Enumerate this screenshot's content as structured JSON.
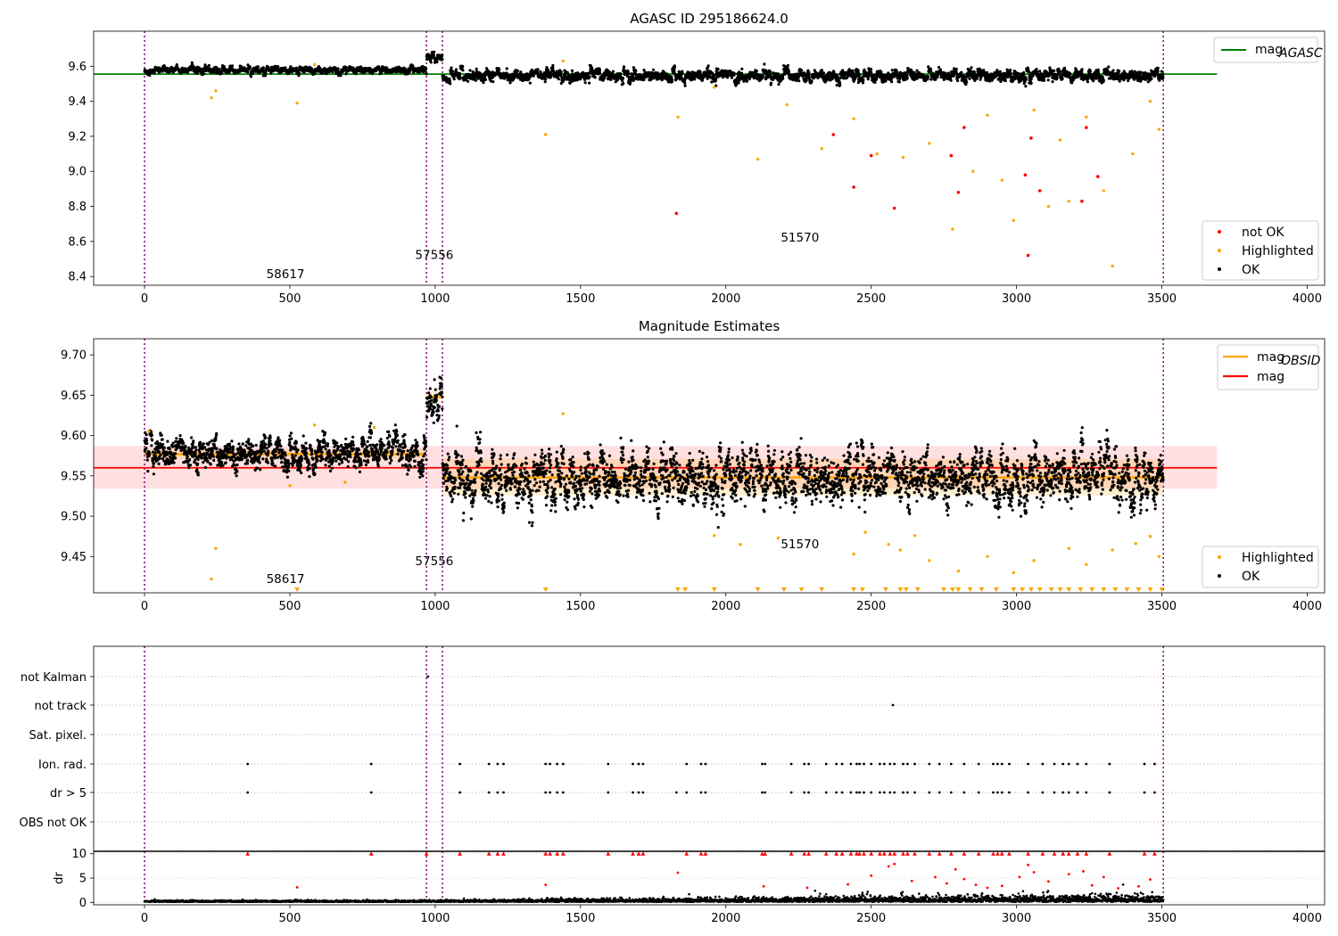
{
  "chart_data": [
    {
      "type": "scatter",
      "title": "AGASC ID 295186624.0",
      "xlim": [
        -175,
        4060
      ],
      "ylim": [
        8.35,
        9.8
      ],
      "xticks": [
        "0",
        "500",
        "1000",
        "1500",
        "2000",
        "2500",
        "3000",
        "3500",
        "4000"
      ],
      "yticks": [
        "8.4",
        "8.6",
        "8.8",
        "9.0",
        "9.2",
        "9.4",
        "9.6"
      ],
      "vlines": [
        0,
        970,
        1025,
        3505
      ],
      "hline": {
        "name": "mag",
        "sub": "AGASC",
        "value": 9.555,
        "color": "#008000",
        "x_extent": [
          -175,
          3690
        ]
      },
      "annotations": [
        {
          "text": "58617",
          "x": 485,
          "y": 8.39
        },
        {
          "text": "57556",
          "x": 997,
          "y": 8.5
        },
        {
          "text": "51570",
          "x": 2255,
          "y": 8.6
        }
      ],
      "legend_lines": [
        {
          "name": "mag",
          "sub": "AGASC",
          "color": "#008000"
        }
      ],
      "legend_points": [
        {
          "name": "not OK",
          "color": "#ff0000"
        },
        {
          "name": "Highlighted",
          "color": "#ffa500"
        },
        {
          "name": "OK",
          "color": "#000000"
        }
      ],
      "segments": [
        {
          "x0": 0,
          "x1": 970,
          "level": 9.578,
          "sd": 0.009
        },
        {
          "x0": 970,
          "x1": 1025,
          "level": 9.648,
          "sd": 0.01
        },
        {
          "x0": 1025,
          "x1": 3505,
          "level": 9.548,
          "sd": 0.015
        }
      ],
      "highlighted": [
        [
          230,
          9.42
        ],
        [
          245,
          9.46
        ],
        [
          525,
          9.39
        ],
        [
          585,
          9.61
        ],
        [
          1380,
          9.21
        ],
        [
          1440,
          9.63
        ],
        [
          1835,
          9.31
        ],
        [
          1960,
          9.48
        ],
        [
          2110,
          9.07
        ],
        [
          2210,
          9.38
        ],
        [
          2330,
          9.13
        ],
        [
          2440,
          9.3
        ],
        [
          2520,
          9.1
        ],
        [
          2610,
          9.08
        ],
        [
          2700,
          9.16
        ],
        [
          2780,
          8.67
        ],
        [
          2850,
          9.0
        ],
        [
          2900,
          9.32
        ],
        [
          2950,
          8.95
        ],
        [
          2990,
          8.72
        ],
        [
          3060,
          9.35
        ],
        [
          3110,
          8.8
        ],
        [
          3150,
          9.18
        ],
        [
          3180,
          8.83
        ],
        [
          3240,
          9.31
        ],
        [
          3300,
          8.89
        ],
        [
          3330,
          8.46
        ],
        [
          3400,
          9.1
        ],
        [
          3460,
          9.4
        ],
        [
          3490,
          9.24
        ]
      ],
      "not_ok": [
        [
          1830,
          8.76
        ],
        [
          2370,
          9.21
        ],
        [
          2440,
          8.91
        ],
        [
          2500,
          9.09
        ],
        [
          2580,
          8.79
        ],
        [
          2775,
          9.09
        ],
        [
          2800,
          8.88
        ],
        [
          2820,
          9.25
        ],
        [
          3030,
          8.98
        ],
        [
          3040,
          8.52
        ],
        [
          3050,
          9.19
        ],
        [
          3080,
          8.89
        ],
        [
          3225,
          8.83
        ],
        [
          3240,
          9.25
        ],
        [
          3280,
          8.97
        ]
      ]
    },
    {
      "type": "scatter",
      "title": "Magnitude Estimates",
      "xlim": [
        -175,
        4060
      ],
      "ylim": [
        9.405,
        9.72
      ],
      "xticks": [
        "0",
        "500",
        "1000",
        "1500",
        "2000",
        "2500",
        "3000",
        "3500",
        "4000"
      ],
      "yticks": [
        "9.45",
        "9.50",
        "9.55",
        "9.60",
        "9.65",
        "9.70"
      ],
      "vlines": [
        0,
        970,
        1025,
        3505
      ],
      "mag_line": {
        "name": "mag",
        "value": 9.56,
        "band": [
          9.534,
          9.587
        ],
        "color": "#ff0000",
        "x_extent": [
          -175,
          3690
        ]
      },
      "obsid_mags": [
        {
          "x0": 0,
          "x1": 970,
          "value": 9.577,
          "band": [
            9.571,
            9.583
          ]
        },
        {
          "x0": 970,
          "x1": 1025,
          "value": 9.648,
          "band": [
            9.641,
            9.655
          ]
        },
        {
          "x0": 1025,
          "x1": 3505,
          "value": 9.548,
          "band": [
            9.526,
            9.571
          ]
        }
      ],
      "annotations": [
        {
          "text": "58617",
          "x": 485,
          "y": 9.417
        },
        {
          "text": "57556",
          "x": 997,
          "y": 9.439
        },
        {
          "text": "51570",
          "x": 2255,
          "y": 9.46
        }
      ],
      "legend_lines": [
        {
          "name": "mag",
          "sub": "OBSID",
          "color": "#ffa500"
        },
        {
          "name": "mag",
          "sub": "",
          "color": "#ff0000"
        }
      ],
      "legend_points": [
        {
          "name": "Highlighted",
          "color": "#ffa500"
        },
        {
          "name": "OK",
          "color": "#000000"
        }
      ],
      "highlighted": [
        [
          15,
          9.605
        ],
        [
          230,
          9.422
        ],
        [
          245,
          9.46
        ],
        [
          500,
          9.538
        ],
        [
          585,
          9.613
        ],
        [
          690,
          9.542
        ],
        [
          790,
          9.61
        ],
        [
          1440,
          9.627
        ],
        [
          1960,
          9.476
        ],
        [
          2050,
          9.465
        ],
        [
          2180,
          9.473
        ],
        [
          2440,
          9.453
        ],
        [
          2480,
          9.48
        ],
        [
          2560,
          9.465
        ],
        [
          2600,
          9.458
        ],
        [
          2650,
          9.476
        ],
        [
          2700,
          9.445
        ],
        [
          2800,
          9.432
        ],
        [
          2900,
          9.45
        ],
        [
          2990,
          9.43
        ],
        [
          3060,
          9.445
        ],
        [
          3180,
          9.46
        ],
        [
          3240,
          9.44
        ],
        [
          3330,
          9.458
        ],
        [
          3410,
          9.466
        ],
        [
          3460,
          9.475
        ],
        [
          3490,
          9.45
        ]
      ],
      "clipped_x": [
        525,
        1380,
        1835,
        1860,
        1960,
        2110,
        2200,
        2260,
        2330,
        2440,
        2470,
        2550,
        2600,
        2620,
        2660,
        2750,
        2780,
        2800,
        2840,
        2880,
        2930,
        2990,
        3020,
        3050,
        3080,
        3120,
        3150,
        3180,
        3220,
        3260,
        3300,
        3340,
        3380,
        3420,
        3460,
        3500
      ]
    },
    {
      "type": "scatter",
      "title": "",
      "xlim": [
        -175,
        4060
      ],
      "xticks": [
        "0",
        "500",
        "1000",
        "1500",
        "2000",
        "2500",
        "3000",
        "3500",
        "4000"
      ],
      "vlines": [
        0,
        970,
        1025,
        3505
      ],
      "flag_labels": [
        "not Kalman",
        "not track",
        "Sat. pixel.",
        "Ion. rad.",
        "dr > 5",
        "OBS not OK"
      ],
      "flag_points": {
        "not Kalman": [
          975
        ],
        "not track": [
          2575
        ],
        "Sat. pixel.": [],
        "Ion. rad.": [
          355,
          780,
          1085,
          1185,
          1215,
          1235,
          1380,
          1395,
          1420,
          1440,
          1595,
          1680,
          1700,
          1715,
          1865,
          1915,
          1930,
          2125,
          2135,
          2225,
          2270,
          2285,
          2345,
          2380,
          2400,
          2430,
          2450,
          2460,
          2475,
          2500,
          2530,
          2545,
          2565,
          2580,
          2610,
          2625,
          2650,
          2700,
          2735,
          2775,
          2820,
          2870,
          2920,
          2935,
          2950,
          2975,
          3040,
          3090,
          3130,
          3160,
          3180,
          3210,
          3240,
          3320,
          3440,
          3475
        ],
        "dr > 5": [
          355,
          780,
          1085,
          1185,
          1215,
          1235,
          1380,
          1395,
          1420,
          1440,
          1595,
          1680,
          1700,
          1715,
          1830,
          1865,
          1915,
          1930,
          2125,
          2135,
          2225,
          2270,
          2285,
          2345,
          2380,
          2400,
          2430,
          2450,
          2460,
          2475,
          2500,
          2530,
          2545,
          2565,
          2580,
          2610,
          2625,
          2650,
          2700,
          2735,
          2775,
          2820,
          2870,
          2920,
          2935,
          2950,
          2975,
          3040,
          3090,
          3130,
          3160,
          3180,
          3210,
          3240,
          3320,
          3440,
          3475
        ],
        "OBS not OK": []
      },
      "dr": {
        "ylabel": "dr",
        "ylim": [
          -0.5,
          10.5
        ],
        "yticks": [
          "0",
          "5",
          "10"
        ],
        "clipped_x": [
          355,
          780,
          970,
          1085,
          1185,
          1215,
          1235,
          1380,
          1395,
          1420,
          1440,
          1595,
          1680,
          1700,
          1715,
          1865,
          1915,
          1930,
          2125,
          2135,
          2225,
          2270,
          2285,
          2345,
          2380,
          2400,
          2430,
          2450,
          2460,
          2475,
          2500,
          2530,
          2545,
          2565,
          2580,
          2610,
          2625,
          2650,
          2700,
          2735,
          2775,
          2820,
          2870,
          2920,
          2935,
          2950,
          2975,
          3040,
          3090,
          3130,
          3160,
          3180,
          3210,
          3240,
          3320,
          3440,
          3475
        ],
        "mid_points": [
          [
            525,
            3.1
          ],
          [
            1380,
            3.6
          ],
          [
            1835,
            6.1
          ],
          [
            2130,
            3.3
          ],
          [
            2280,
            3.0
          ],
          [
            2420,
            3.7
          ],
          [
            2500,
            5.5
          ],
          [
            2560,
            7.4
          ],
          [
            2580,
            7.9
          ],
          [
            2640,
            4.4
          ],
          [
            2720,
            5.2
          ],
          [
            2760,
            3.9
          ],
          [
            2790,
            6.8
          ],
          [
            2820,
            4.8
          ],
          [
            2860,
            3.6
          ],
          [
            2900,
            3.0
          ],
          [
            2950,
            3.4
          ],
          [
            3010,
            5.2
          ],
          [
            3040,
            7.7
          ],
          [
            3060,
            6.2
          ],
          [
            3110,
            4.3
          ],
          [
            3180,
            5.8
          ],
          [
            3230,
            6.4
          ],
          [
            3260,
            3.5
          ],
          [
            3300,
            5.2
          ],
          [
            3350,
            2.9
          ],
          [
            3420,
            3.3
          ],
          [
            3460,
            4.7
          ]
        ]
      }
    }
  ]
}
